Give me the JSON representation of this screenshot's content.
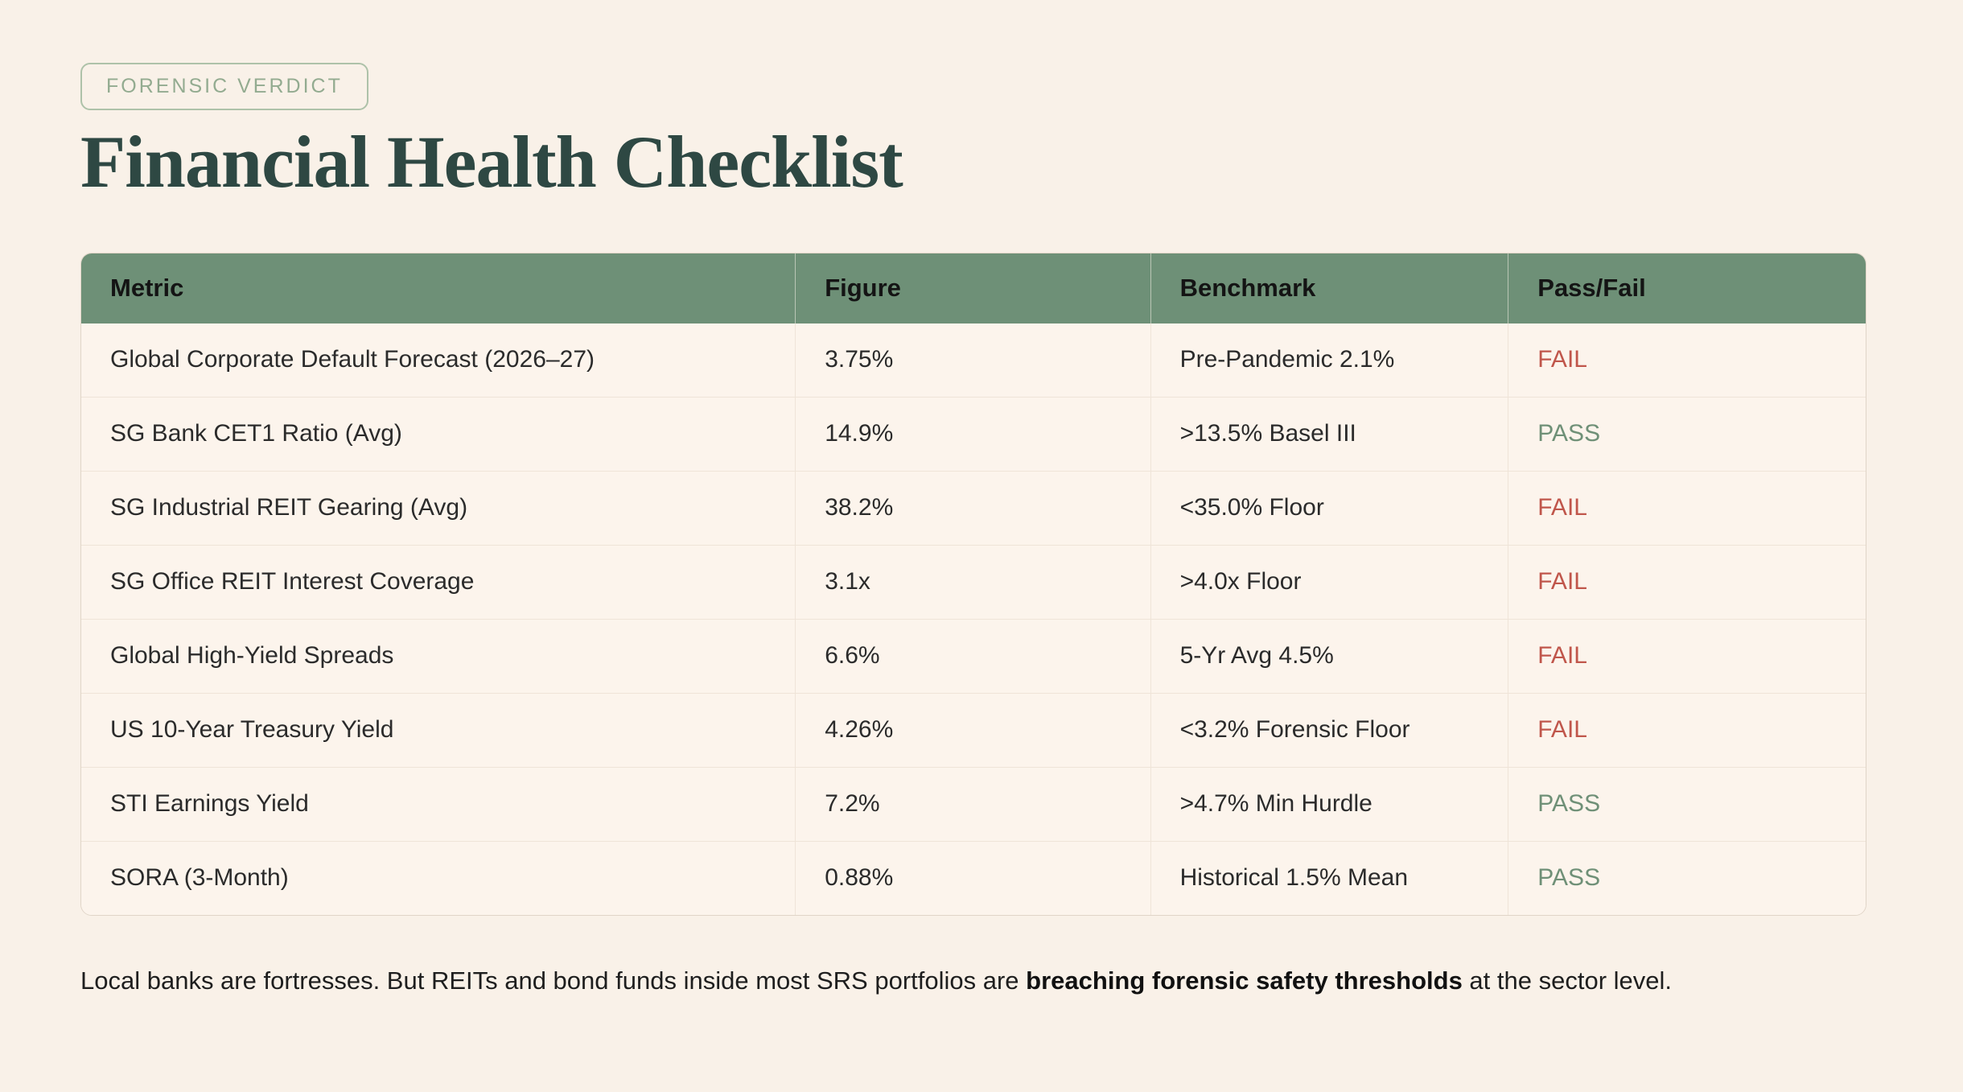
{
  "badge_label": "FORENSIC VERDICT",
  "title": "Financial Health Checklist",
  "colors": {
    "page_background": "#f9f1e8",
    "table_header_green": "#6e9077",
    "title_dark_green": "#2e4843",
    "fail_red": "#c0564b",
    "pass_green": "#6f9077",
    "badge_green": "#93ab90"
  },
  "chart_data": {
    "type": "table",
    "title": "Financial Health Checklist",
    "columns": [
      "Metric",
      "Figure",
      "Benchmark",
      "Pass/Fail"
    ],
    "rows": [
      {
        "metric": "Global Corporate Default Forecast (2026–27)",
        "figure": "3.75%",
        "benchmark": "Pre-Pandemic 2.1%",
        "status": "FAIL"
      },
      {
        "metric": "SG Bank CET1 Ratio (Avg)",
        "figure": "14.9%",
        "benchmark": ">13.5% Basel III",
        "status": "PASS"
      },
      {
        "metric": "SG Industrial REIT Gearing (Avg)",
        "figure": "38.2%",
        "benchmark": "<35.0% Floor",
        "status": "FAIL"
      },
      {
        "metric": "SG Office REIT Interest Coverage",
        "figure": "3.1x",
        "benchmark": ">4.0x Floor",
        "status": "FAIL"
      },
      {
        "metric": "Global High-Yield Spreads",
        "figure": "6.6%",
        "benchmark": "5-Yr Avg 4.5%",
        "status": "FAIL"
      },
      {
        "metric": "US 10-Year Treasury Yield",
        "figure": "4.26%",
        "benchmark": "<3.2% Forensic Floor",
        "status": "FAIL"
      },
      {
        "metric": "STI Earnings Yield",
        "figure": "7.2%",
        "benchmark": ">4.7% Min Hurdle",
        "status": "PASS"
      },
      {
        "metric": "SORA (3-Month)",
        "figure": "0.88%",
        "benchmark": "Historical 1.5% Mean",
        "status": "PASS"
      }
    ]
  },
  "footnote": {
    "pre": "Local banks are fortresses. But REITs and bond funds inside most SRS portfolios are ",
    "bold": "breaching forensic safety thresholds",
    "post": " at the sector level."
  }
}
